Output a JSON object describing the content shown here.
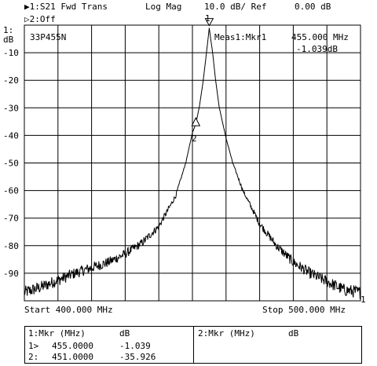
{
  "header": {
    "trace1": "▶1:S21 Fwd Trans",
    "format": "Log Mag",
    "scale": "10.0 dB/ Ref",
    "ref": "0.00 dB",
    "trace2": "▷2:Off"
  },
  "plot": {
    "y_unit_top": "1:",
    "y_unit": "dB",
    "device": "33P455N",
    "meas_label": "Meas1:Mkr1",
    "meas_freq": "455.000 MHz",
    "meas_value": "-1.039dB",
    "start_label": "Start 400.000 MHz",
    "stop_label": "Stop 500.000 MHz",
    "marker1_label": "1",
    "marker2_label": "2",
    "edge_label": "1"
  },
  "chart_data": {
    "type": "line",
    "xlabel": "",
    "ylabel": "dB",
    "xlim": [
      400,
      500
    ],
    "ylim": [
      -100,
      0
    ],
    "y_ticks": [
      "-10",
      "-20",
      "-30",
      "-40",
      "-50",
      "-60",
      "-70",
      "-80",
      "-90"
    ],
    "grid": true,
    "series": [
      {
        "x": [
          400,
          405,
          410,
          415,
          420,
          425,
          430,
          435,
          440,
          445,
          448,
          450,
          451,
          452,
          453,
          454,
          455,
          456,
          457,
          458,
          460,
          462,
          465,
          470,
          475,
          480,
          485,
          490,
          495,
          500
        ],
        "y": [
          -97,
          -95,
          -92.5,
          -90,
          -88,
          -86,
          -83,
          -79,
          -73,
          -62,
          -50,
          -39,
          -35.9,
          -30,
          -22,
          -12,
          -1.039,
          -10,
          -21,
          -30,
          -41,
          -50,
          -60,
          -72,
          -80,
          -86,
          -90,
          -93,
          -96,
          -97
        ]
      }
    ],
    "markers": [
      {
        "id": "1",
        "x": 455.0,
        "y": -1.039
      },
      {
        "id": "2",
        "x": 451.0,
        "y": -35.926
      }
    ]
  },
  "marker_table": {
    "left_header": [
      "1:Mkr (MHz)",
      "dB"
    ],
    "right_header": [
      "2:Mkr (MHz)",
      "dB"
    ],
    "rows": [
      {
        "idx": "1>",
        "freq": "455.0000",
        "db": "-1.039"
      },
      {
        "idx": "2:",
        "freq": "451.0000",
        "db": "-35.926"
      }
    ]
  }
}
